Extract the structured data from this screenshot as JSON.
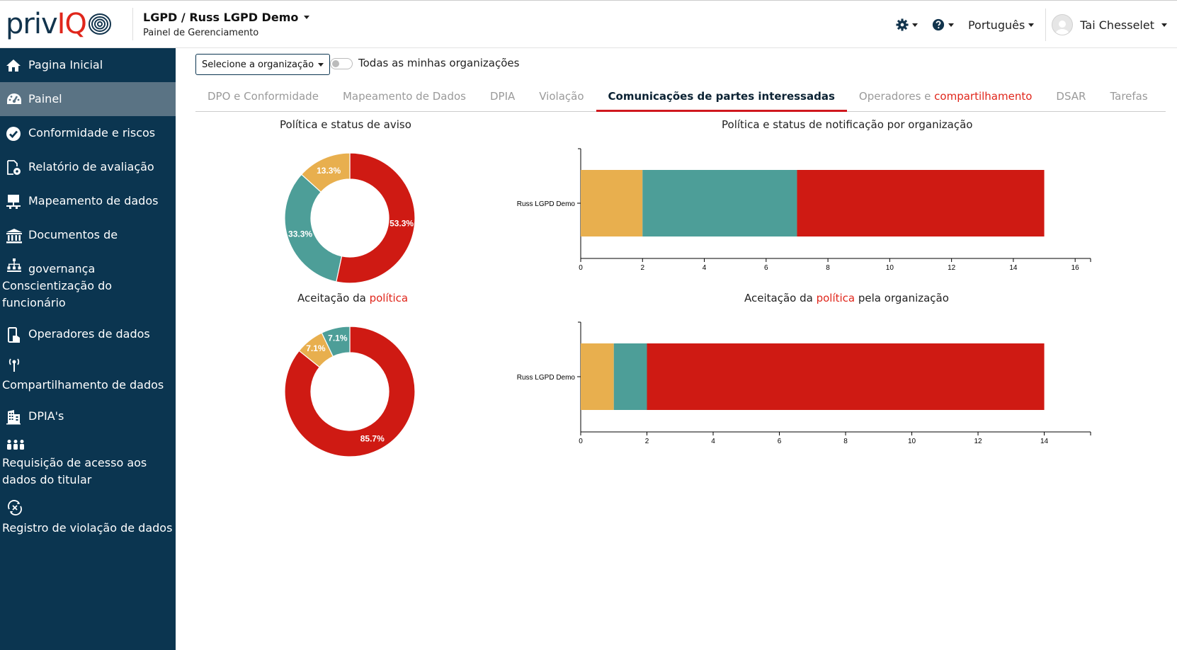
{
  "header": {
    "logo_text_1": "priv",
    "logo_text_2": "IQ",
    "title": "LGPD / Russ LGPD Demo",
    "subtitle": "Painel de Gerenciamento",
    "language": "Português",
    "user_name": "Tai Chesselet"
  },
  "sidebar": {
    "items": [
      {
        "label": "Pagina Inicial",
        "icon": "home-icon"
      },
      {
        "label": "Painel",
        "icon": "dashboard-icon"
      },
      {
        "label": "Conformidade e riscos",
        "icon": "check-circle-icon"
      },
      {
        "label": "Relatório de avaliação",
        "icon": "report-icon"
      },
      {
        "label": "Mapeamento de dados",
        "icon": "data-map-icon"
      },
      {
        "label": "Documentos de governança",
        "icon": "institution-icon"
      },
      {
        "label": "Conscientização do funcionário",
        "icon": "org-chart-icon"
      },
      {
        "label": "Operadores de dados",
        "icon": "device-icon"
      },
      {
        "label": "Compartilhamento de dados",
        "icon": "broadcast-icon"
      },
      {
        "label": "DPIA's",
        "icon": "building-icon"
      },
      {
        "label": "Requisição de acesso aos dados do titular",
        "icon": "people-icon"
      },
      {
        "label": "Registro de violação de dados",
        "icon": "breach-icon"
      }
    ]
  },
  "toolbar": {
    "org_select_label": "Selecione a organização",
    "toggle_label": "Todas as minhas organizações"
  },
  "tabs": [
    {
      "label": "DPO e Conformidade"
    },
    {
      "label": "Mapeamento de Dados"
    },
    {
      "label": "DPIA"
    },
    {
      "label": "Violação"
    },
    {
      "label": "Comunicações de partes interessadas"
    },
    {
      "label_1": "Operadores e ",
      "label_2": "compartilhamento"
    },
    {
      "label": "DSAR"
    },
    {
      "label": "Tarefas"
    }
  ],
  "colors": {
    "red": "#cf1a13",
    "teal": "#4d9e98",
    "gold": "#e8af4e",
    "sidebar_bg": "#0b3550",
    "accent": "#e0261b"
  },
  "charts": {
    "pie1_title": "Política e status de aviso",
    "bar1_title": "Política e status de notificação por organização",
    "pie2_title_1": "Aceitação da ",
    "pie2_title_2": "política",
    "bar2_title_1": "Aceitação da ",
    "bar2_title_2": "política",
    "bar2_title_3": " pela organização"
  },
  "chart_data": [
    {
      "type": "pie",
      "title": "Política e status de aviso",
      "slices": [
        {
          "label": "53.3%",
          "value": 53.3,
          "color": "#cf1a13"
        },
        {
          "label": "33.3%",
          "value": 33.3,
          "color": "#4d9e98"
        },
        {
          "label": "13.3%",
          "value": 13.3,
          "color": "#e8af4e"
        }
      ]
    },
    {
      "type": "bar",
      "orientation": "horizontal",
      "stacked": true,
      "title": "Política e status de notificação por organização",
      "categories": [
        "Russ LGPD Demo"
      ],
      "series": [
        {
          "values": [
            2
          ],
          "color": "#e8af4e"
        },
        {
          "values": [
            5
          ],
          "color": "#4d9e98"
        },
        {
          "values": [
            8
          ],
          "color": "#cf1a13"
        }
      ],
      "xlim": [
        0,
        16.5
      ],
      "xticks": [
        0,
        2,
        4,
        6,
        8,
        10,
        12,
        14,
        16
      ]
    },
    {
      "type": "pie",
      "title": "Aceitação da política",
      "slices": [
        {
          "label": "85.7%",
          "value": 85.7,
          "color": "#cf1a13"
        },
        {
          "label": "7.1%",
          "value": 7.1,
          "color": "#e8af4e"
        },
        {
          "label": "7.1%",
          "value": 7.1,
          "color": "#4d9e98"
        }
      ]
    },
    {
      "type": "bar",
      "orientation": "horizontal",
      "stacked": true,
      "title": "Aceitação da política pela organização",
      "categories": [
        "Russ LGPD Demo"
      ],
      "series": [
        {
          "values": [
            1
          ],
          "color": "#e8af4e"
        },
        {
          "values": [
            1
          ],
          "color": "#4d9e98"
        },
        {
          "values": [
            12
          ],
          "color": "#cf1a13"
        }
      ],
      "xlim": [
        0,
        15.4
      ],
      "xticks": [
        0,
        2,
        4,
        6,
        8,
        10,
        12,
        14
      ]
    }
  ]
}
